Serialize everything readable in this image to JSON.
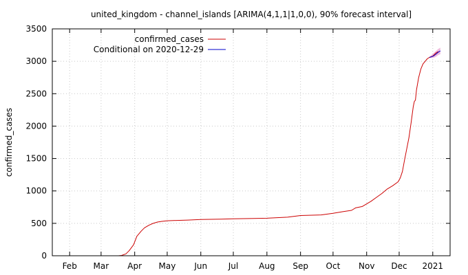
{
  "chart_data": {
    "type": "line",
    "title": "united_kingdom - channel_islands [ARIMA(4,1,1|1,0,0), 90% forecast interval]",
    "xlabel": "",
    "ylabel": "confirmed_cases",
    "x_range": [
      "2020-01-16",
      "2021-01-17"
    ],
    "ylim": [
      0,
      3500
    ],
    "grid": true,
    "legend_position": "top-left",
    "x_ticks": [
      {
        "label": "Feb",
        "date": "2020-02-01"
      },
      {
        "label": "Mar",
        "date": "2020-03-01"
      },
      {
        "label": "Apr",
        "date": "2020-04-01"
      },
      {
        "label": "May",
        "date": "2020-05-01"
      },
      {
        "label": "Jun",
        "date": "2020-06-01"
      },
      {
        "label": "Jul",
        "date": "2020-07-01"
      },
      {
        "label": "Aug",
        "date": "2020-08-01"
      },
      {
        "label": "Sep",
        "date": "2020-09-01"
      },
      {
        "label": "Oct",
        "date": "2020-10-01"
      },
      {
        "label": "Nov",
        "date": "2020-11-01"
      },
      {
        "label": "Dec",
        "date": "2020-12-01"
      },
      {
        "label": "2021",
        "date": "2021-01-01"
      }
    ],
    "y_ticks": [
      0,
      500,
      1000,
      1500,
      2000,
      2500,
      3000,
      3500
    ],
    "series": [
      {
        "name": "confirmed_cases",
        "color": "#cc0000",
        "points": [
          [
            "2020-03-17",
            0
          ],
          [
            "2020-03-20",
            5
          ],
          [
            "2020-03-24",
            30
          ],
          [
            "2020-03-27",
            80
          ],
          [
            "2020-03-31",
            170
          ],
          [
            "2020-04-03",
            300
          ],
          [
            "2020-04-07",
            380
          ],
          [
            "2020-04-10",
            430
          ],
          [
            "2020-04-14",
            470
          ],
          [
            "2020-04-18",
            500
          ],
          [
            "2020-04-22",
            520
          ],
          [
            "2020-04-26",
            530
          ],
          [
            "2020-05-01",
            540
          ],
          [
            "2020-05-10",
            545
          ],
          [
            "2020-05-20",
            550
          ],
          [
            "2020-06-01",
            560
          ],
          [
            "2020-06-20",
            565
          ],
          [
            "2020-07-01",
            570
          ],
          [
            "2020-07-20",
            575
          ],
          [
            "2020-08-01",
            580
          ],
          [
            "2020-08-20",
            595
          ],
          [
            "2020-09-01",
            620
          ],
          [
            "2020-09-20",
            630
          ],
          [
            "2020-10-01",
            655
          ],
          [
            "2020-10-10",
            680
          ],
          [
            "2020-10-18",
            700
          ],
          [
            "2020-10-22",
            740
          ],
          [
            "2020-10-28",
            760
          ],
          [
            "2020-11-01",
            800
          ],
          [
            "2020-11-05",
            840
          ],
          [
            "2020-11-10",
            900
          ],
          [
            "2020-11-15",
            960
          ],
          [
            "2020-11-20",
            1030
          ],
          [
            "2020-11-25",
            1080
          ],
          [
            "2020-11-30",
            1140
          ],
          [
            "2020-12-02",
            1200
          ],
          [
            "2020-12-04",
            1300
          ],
          [
            "2020-12-06",
            1480
          ],
          [
            "2020-12-08",
            1650
          ],
          [
            "2020-12-10",
            1820
          ],
          [
            "2020-12-12",
            2050
          ],
          [
            "2020-12-14",
            2300
          ],
          [
            "2020-12-15",
            2380
          ],
          [
            "2020-12-16",
            2400
          ],
          [
            "2020-12-17",
            2560
          ],
          [
            "2020-12-19",
            2750
          ],
          [
            "2020-12-21",
            2880
          ],
          [
            "2020-12-23",
            2960
          ],
          [
            "2020-12-25",
            3000
          ],
          [
            "2020-12-27",
            3040
          ],
          [
            "2020-12-29",
            3060
          ],
          [
            "2021-01-01",
            3080
          ],
          [
            "2021-01-04",
            3130
          ],
          [
            "2021-01-06",
            3150
          ]
        ]
      },
      {
        "name": "Conditional on 2020-12-29",
        "color": "#0000cc",
        "points": [
          [
            "2020-12-29",
            3060
          ],
          [
            "2020-12-31",
            3070
          ],
          [
            "2021-01-02",
            3085
          ],
          [
            "2021-01-04",
            3110
          ],
          [
            "2021-01-06",
            3140
          ],
          [
            "2021-01-08",
            3160
          ]
        ],
        "interval_upper": [
          3070,
          3100,
          3130,
          3160,
          3190,
          3210
        ],
        "interval_lower": [
          3055,
          3050,
          3055,
          3070,
          3095,
          3110
        ],
        "interval_color": "#e8a0d0"
      }
    ]
  }
}
